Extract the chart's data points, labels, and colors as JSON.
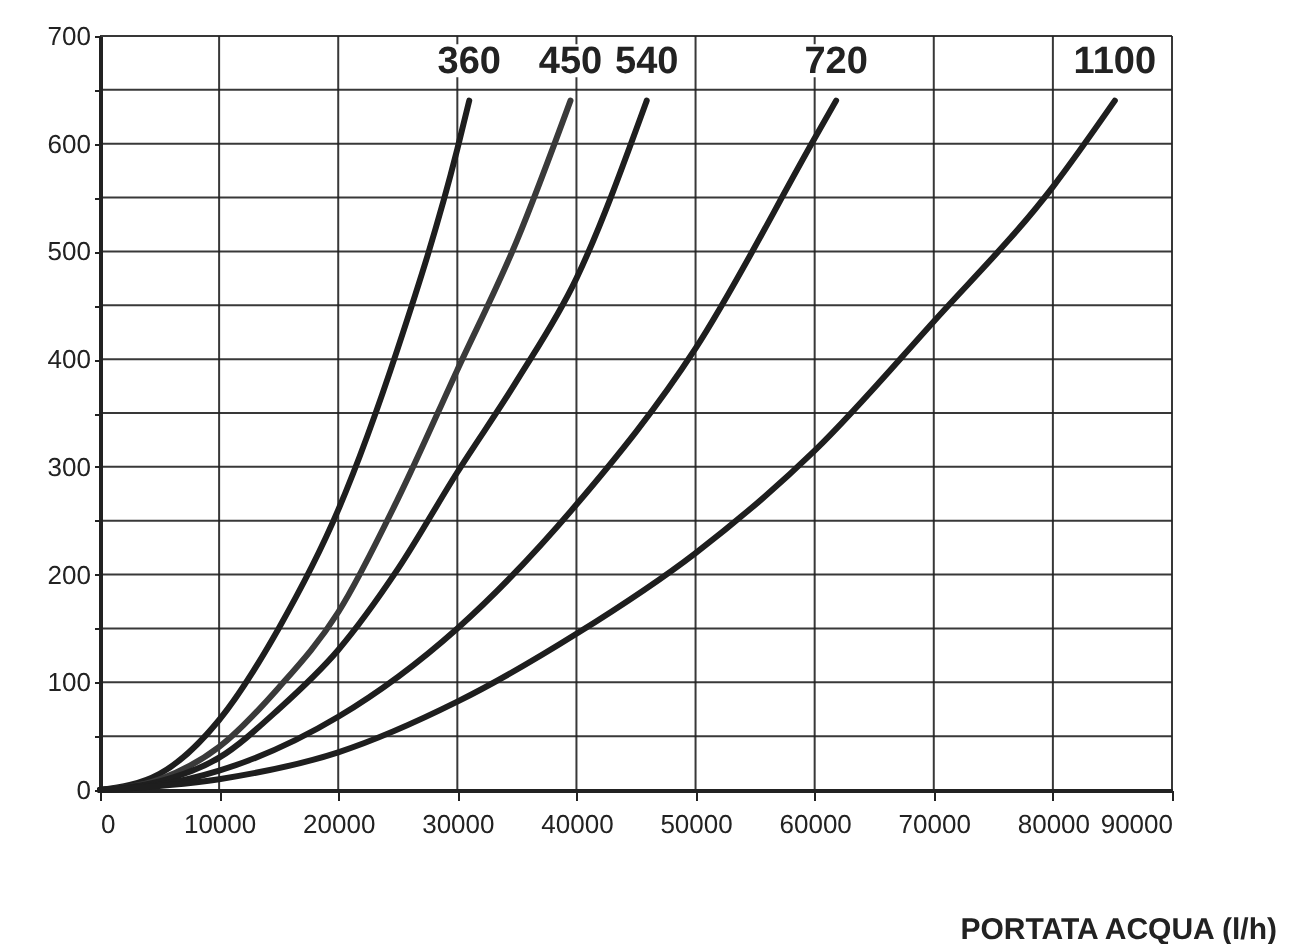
{
  "chart_data": {
    "type": "line",
    "xlabel": "PORTATA ACQUA (l/h)",
    "xlim": [
      0,
      90000
    ],
    "xticks": [
      0,
      10000,
      20000,
      30000,
      40000,
      50000,
      60000,
      70000,
      80000,
      90000
    ],
    "ylim": [
      0,
      700
    ],
    "yticks": [
      0,
      {
        "value": 50,
        "label": null
      },
      100,
      {
        "value": 150,
        "label": null
      },
      200,
      {
        "value": 250,
        "label": null
      },
      300,
      {
        "value": 350,
        "label": null
      },
      400,
      {
        "value": 450,
        "label": null
      },
      500,
      {
        "value": 550,
        "label": null
      },
      600,
      {
        "value": 650,
        "label": null
      },
      700
    ],
    "grid": true,
    "marker": "none",
    "line_style": "solid",
    "series": [
      {
        "name": "360",
        "color": "#1e1e1e",
        "x": [
          0,
          5000,
          10000,
          15000,
          20000,
          25000,
          30000,
          31000
        ],
        "values": [
          0,
          15,
          65,
          150,
          260,
          410,
          595,
          640
        ]
      },
      {
        "name": "450",
        "color": "#3a3a3a",
        "x": [
          0,
          5000,
          10000,
          15000,
          20000,
          25000,
          30000,
          35000,
          39500
        ],
        "values": [
          0,
          10,
          40,
          95,
          165,
          270,
          390,
          510,
          640
        ]
      },
      {
        "name": "540",
        "color": "#1e1e1e",
        "x": [
          0,
          5000,
          10000,
          15000,
          20000,
          25000,
          30000,
          35000,
          40000,
          45900
        ],
        "values": [
          0,
          8,
          30,
          75,
          130,
          205,
          295,
          380,
          475,
          640
        ]
      },
      {
        "name": "720",
        "color": "#1e1e1e",
        "x": [
          0,
          5000,
          10000,
          20000,
          30000,
          40000,
          50000,
          60000,
          61800
        ],
        "values": [
          0,
          5,
          18,
          68,
          150,
          265,
          410,
          605,
          640
        ]
      },
      {
        "name": "1100",
        "color": "#1e1e1e",
        "x": [
          0,
          10000,
          20000,
          30000,
          40000,
          50000,
          60000,
          70000,
          80000,
          85200
        ],
        "values": [
          0,
          10,
          35,
          82,
          145,
          220,
          315,
          435,
          560,
          640
        ]
      }
    ]
  }
}
